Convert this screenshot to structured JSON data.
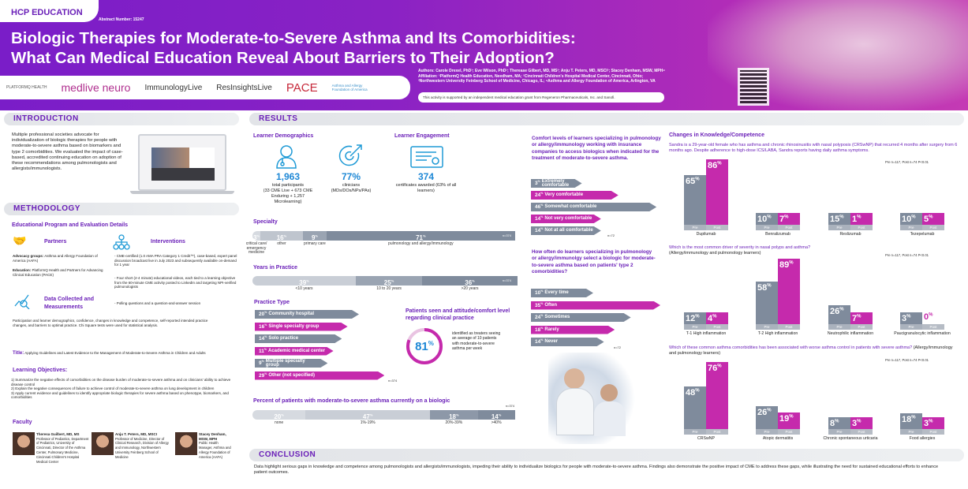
{
  "header": {
    "badge": "HCP EDUCATION",
    "abstract": "Abstract Number: 15247",
    "title_line1": "Biologic Therapies for Moderate-to-Severe Asthma and Its Comorbidities:",
    "title_line2": "What Can Medical Education Reveal About Barriers to Their Adoption?",
    "logos": [
      "PLATFORMQ HEALTH",
      "medlive neuro",
      "ImmunologyLive",
      "ResInsightsLive",
      "PACE",
      "Asthma and Allergy Foundation of America"
    ],
    "authors": "Authors: Carole Drexel, PhD¹; Eve Wilson, PhD¹; Therease Gilbert, MD, MS²; Anju T. Peters, MD, MSCI³; Stacey Denham, MSW, MPH⁴",
    "affiliation1": "Affiliation: ¹PlatformQ Health Education, Needham, MA; ²Cincinnati Children's Hospital Medical Center, Cincinnati, Ohio;",
    "affiliation2": "³Northwestern University Feinberg School of Medicine, Chicago, IL; ⁴Asthma and Allergy Foundation of America, Arlington, VA",
    "grant": "This activity is supported by an independent medical education grant from Regeneron Pharmaceuticals, Inc. and Sanofi."
  },
  "introduction": {
    "heading": "INTRODUCTION",
    "text": "Multiple professional societies advocate for individualization of biologic therapies for people with moderate-to-severe asthma based on biomarkers and type 2 comorbidities. We evaluated the impact of case-based, accredited continuing education on adoption of these recommendations among pulmonologists and allergists/immunologists."
  },
  "methodology": {
    "heading": "METHODOLOGY",
    "subheading": "Educational Program and Evaluation Details",
    "partners_title": "Partners",
    "advocacy_label": "Advocacy groups:",
    "advocacy": " Asthma and Allergy Foundation of America (AAFA)",
    "education_label": "Education:",
    "education": " PlatformQ Health and Partners for Advancing Clinical Education (PACE)",
    "interventions_title": "Interventions",
    "interventions": [
      "CME-certified (1.0 AMA PRA Category 1 Credit™), case-based, expert panel discussion broadcast live in July 2023 and subsequently available on-demand for 1 year",
      "Four short (2-4 minute) educational videos, each tied to a learning objective from the 60-minute CME activity posted to LinkedIn and targeting NPI-verified pulmonologists",
      "Polling questions and a question-and-answer session"
    ],
    "data_title": "Data Collected and Measurements",
    "data_text": "Participation and learner demographics, confidence, changes in knowledge and competence, self-reported intended practice changes, and barriers to optimal practice. Chi Square tests were used for statistical analysis.",
    "title_label": "Title:",
    "title": " Applying Guidelines and Latest Evidence to the Management of Moderate-to-Severe Asthma in Children and Adults",
    "objectives_heading": "Learning Objectives:",
    "objectives": [
      "1)  Summarize the negative effects of comorbidities on the disease burden of moderate-to-severe asthma and on clinicians' ability to achieve disease control",
      "2)  Explain the negative consequences of failure to achieve control of moderate-to-severe asthma on lung development in children",
      "3)  Apply current evidence and guidelines to identify appropriate biologic therapies for severe asthma based on phenotype, biomarkers, and comorbidities"
    ],
    "faculty_heading": "Faculty",
    "faculty": [
      {
        "name": "Theresa Guilbert, MD, MS",
        "bio": "Professor of Pediatrics, Department of Pediatrics, University of Cincinnati, Director of the Asthma Center, Pulmonary Medicine, Cincinnati Children's Hospital Medical Center"
      },
      {
        "name": "Anju T. Peters, MD, MSCI",
        "bio": "Professor of Medicine, Director of Clinical Research, Division of Allergy and Immunology, Northwestern University Feinberg School of Medicine"
      },
      {
        "name": "Stacey Denham, MSW, MPH",
        "bio": "Public Health Manager, Asthma and Allergy Foundation of America (AAFA)"
      }
    ]
  },
  "results": {
    "heading": "RESULTS",
    "demographics_title": "Learner Demographics",
    "participants_value": "1,963",
    "participants_label": "total participants",
    "participants_detail": "(33 CME Live + 673 CME Enduring + 1,257 Microlearning)",
    "clinicians_value": "77%",
    "clinicians_label": "clinicians (MDs/DOs/NPs/PAs)",
    "engagement_title": "Learner Engagement",
    "certificates_value": "374",
    "certificates_label": "certificates awarded (63% of all learners)",
    "specialty_title": "Specialty",
    "specialty": {
      "n": "n=374",
      "segments": [
        {
          "pct": 3,
          "label": "critical care/ emergency medicine",
          "color": "#d6dae0"
        },
        {
          "pct": 16,
          "label": "other",
          "color": "#bfc5ce"
        },
        {
          "pct": 9,
          "label": "primary care",
          "color": "#9aa4b2"
        },
        {
          "pct": 71,
          "label": "pulmonology and allergy/immunology",
          "color": "#7f8b9c"
        }
      ]
    },
    "years_title": "Years in Practice",
    "years": {
      "n": "n=374",
      "segments": [
        {
          "pct": 39,
          "label": "<10 years",
          "color": "#c9ced6"
        },
        {
          "pct": 25,
          "label": "10 to 20 years",
          "color": "#9aa4b2"
        },
        {
          "pct": 36,
          "label": ">20 years",
          "color": "#7f8b9c"
        }
      ]
    },
    "practice_title": "Practice Type",
    "practice": {
      "n": "n=374",
      "items": [
        {
          "pct": 20,
          "label": "Community hospital"
        },
        {
          "pct": 16,
          "label": "Single specialty group"
        },
        {
          "pct": 14,
          "label": "Solo practice"
        },
        {
          "pct": 11,
          "label": "Academic medical center"
        },
        {
          "pct": 9,
          "label": "Multiple specialty group"
        },
        {
          "pct": 29,
          "label": "Other (not specified)"
        }
      ]
    },
    "patients_title": "Patients seen and attitude/comfort level regarding clinical practice",
    "patients_value": 81,
    "patients_text": "identified as treaters seeing an average of 10 patients with moderate-to-severe asthma per week",
    "biologic_title": "Percent of patients with moderate-to-severe asthma currently on a biologic",
    "biologic": {
      "n": "n=374",
      "segments": [
        {
          "pct": 20,
          "label": "none",
          "color": "#d6dae0"
        },
        {
          "pct": 47,
          "label": "1%-19%",
          "color": "#c9ced6"
        },
        {
          "pct": 18,
          "label": "20%-39%",
          "color": "#8d98a8"
        },
        {
          "pct": 14,
          "label": ">40%",
          "color": "#7f8b9c"
        }
      ]
    },
    "comfort_title": "Comfort levels of learners specializing in pulmonology or allergy/immunology working with insurance companies to access biologics when indicated for the treatment of moderate-to-severe asthma.",
    "comfort": {
      "n": "n=72",
      "items": [
        {
          "pct": 3,
          "label": "Extremely comfortable"
        },
        {
          "pct": 24,
          "label": "Very comfortable"
        },
        {
          "pct": 46,
          "label": "Somewhat comfortable"
        },
        {
          "pct": 14,
          "label": "Not very comfortable"
        },
        {
          "pct": 14,
          "label": "Not at all comfortable"
        }
      ]
    },
    "frequency_title": "How often do learners specializing in pulmonology or allergy/immunolgy select a biologic for moderate-to-severe asthma based on patients' type 2 comorbidities?",
    "frequency": {
      "n": "n=72",
      "items": [
        {
          "pct": 10,
          "label": "Every time"
        },
        {
          "pct": 35,
          "label": "Often"
        },
        {
          "pct": 24,
          "label": "Sometimes"
        },
        {
          "pct": 18,
          "label": "Rarely"
        },
        {
          "pct": 14,
          "label": "Never"
        }
      ]
    },
    "knowledge_title": "Changes in Knowledge/Competence",
    "pre_label": "Pre",
    "post_label": "Post",
    "charts": [
      {
        "question": "Sandra is a 29-year-old female who has asthma and chronic rhinosinusitis with nasal polyposis (CRSwNP) that recurred 4 months after surgery from 6 months ago. Despite adherence to high-dose ICS/LABA, Sandra reports having daily asthma symptoms.",
        "stats": "Pre n=117, Post n=74  P<0.01",
        "categories": [
          "Dupilumab",
          "Benralizumab",
          "Reslizumab",
          "Tezepelumab"
        ],
        "pre": [
          65,
          10,
          15,
          10
        ],
        "post": [
          86,
          7,
          1,
          5
        ]
      },
      {
        "question": "Which is the most common driver of severity in nasal polyps and asthma?",
        "audience": "(Allergy/immunology and pulmonology learners)",
        "stats": "Pre n=117, Post n=74  P<0.01",
        "categories": [
          "T-1 High inflammation",
          "T-2 High inflammation",
          "Neutrophilic inflammation",
          "Paucigranulocytic inflammation"
        ],
        "pre": [
          12,
          58,
          26,
          3
        ],
        "post": [
          4,
          89,
          7,
          0
        ]
      },
      {
        "question": "Which of these common asthma comorbidities has been associated with worse asthma control in patients with severe asthma?",
        "audience": "(Allergy/immunology and pulmonology learners)",
        "stats": "Pre n=117, Post n=74  P<0.01",
        "categories": [
          "CRSwNP",
          "Atopic dermatitis",
          "Chronic spontaneous urticaria",
          "Food allergies"
        ],
        "pre": [
          48,
          26,
          8,
          18
        ],
        "post": [
          76,
          19,
          3,
          3
        ]
      }
    ]
  },
  "conclusion": {
    "heading": "CONCLUSION",
    "text": "Data highlight serious gaps in knowledge and competence among pulmonologists and allergists/immunologists, impeding their ability to individualize biologics for people with moderate-to-severe asthma. Findings also demonstrate the positive impact of CME to address these gaps, while illustrating the need for sustained educational efforts to enhance patient outcomes."
  },
  "colors": {
    "purple": "#6a1fb8",
    "magenta": "#c52aac",
    "gray": "#7f8b9c",
    "accent_blue": "#1e88d6"
  }
}
